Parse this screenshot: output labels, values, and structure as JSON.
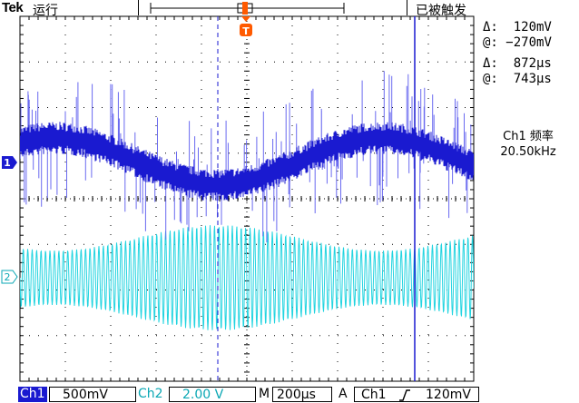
{
  "header": {
    "brand": "Tek",
    "run_status": "运行",
    "trigger_status": "已被触发"
  },
  "cursor_readout": {
    "amp_delta_label": "Δ:",
    "amp_delta_value": "120mV",
    "amp_at_label": "@:",
    "amp_at_value": "−270mV",
    "time_delta_label": "Δ:",
    "time_delta_value": "872µs",
    "time_at_label": "@:",
    "time_at_value": "743µs"
  },
  "measurement": {
    "label": "Ch1 频率",
    "value": "20.50kHz"
  },
  "markers": {
    "ch1": "1",
    "ch2": "2",
    "trigger": "T"
  },
  "footer": {
    "ch1_label": "Ch1",
    "ch1_scale": "500mV",
    "ch2_label": "Ch2",
    "ch2_scale": "2.00 V",
    "timebase_label": "M",
    "timebase_value": "200µs",
    "trigger_mode": "A",
    "trigger_source": "Ch1",
    "trigger_slope_icon": "rising-edge-icon",
    "trigger_level": "120mV"
  },
  "colors": {
    "ch1": "#1a1ad0",
    "ch2": "#22d4e0",
    "cursor": "#1a1ad0",
    "grid": "#000000"
  }
}
